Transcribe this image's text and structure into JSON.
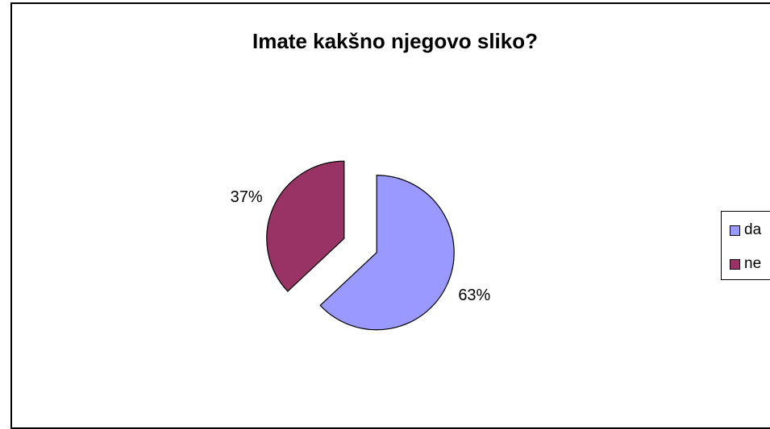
{
  "chart_data": {
    "type": "pie",
    "title": "Imate kakšno njegovo sliko?",
    "categories": [
      "da",
      "ne"
    ],
    "values": [
      63,
      37
    ],
    "data_labels": [
      "63%",
      "37%"
    ],
    "colors": [
      "#9999ff",
      "#993366"
    ],
    "exploded": true,
    "legend": {
      "position": "right",
      "items": [
        {
          "label": "da",
          "color": "#9999ff"
        },
        {
          "label": "ne",
          "color": "#993366"
        }
      ]
    }
  }
}
